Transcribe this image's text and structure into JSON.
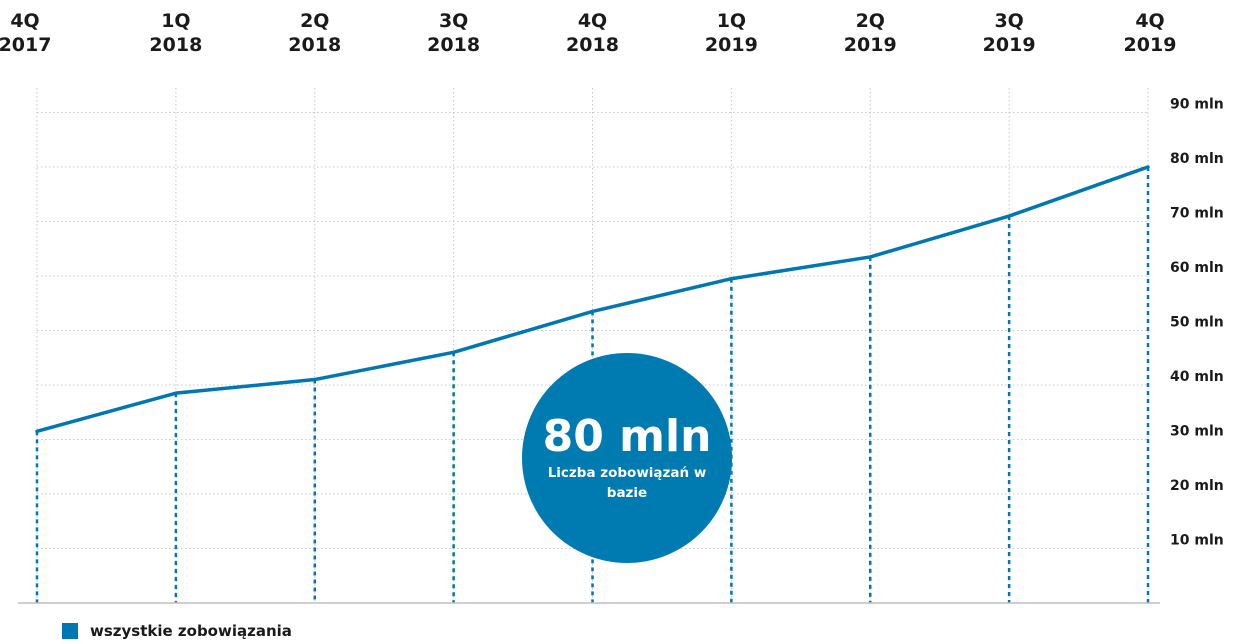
{
  "colors": {
    "line": "#0077b1",
    "badge": "#007bb2",
    "grid": "#c8c8c8",
    "axis": "#bfbfbf",
    "text": "#1a1a1a"
  },
  "badge": {
    "value": "80 mln",
    "caption": "Liczba zobowiązań w bazie"
  },
  "chart_data": {
    "type": "line",
    "x_top_labels": [
      [
        "4Q",
        "2017"
      ],
      [
        "1Q",
        "2018"
      ],
      [
        "2Q",
        "2018"
      ],
      [
        "3Q",
        "2018"
      ],
      [
        "4Q",
        "2018"
      ],
      [
        "1Q",
        "2019"
      ],
      [
        "2Q",
        "2019"
      ],
      [
        "3Q",
        "2019"
      ],
      [
        "4Q",
        "2019"
      ]
    ],
    "categories": [
      "4Q 2017",
      "1Q 2018",
      "2Q 2018",
      "3Q 2018",
      "4Q 2018",
      "1Q 2019",
      "2Q 2019",
      "3Q 2019",
      "4Q 2019"
    ],
    "series": [
      {
        "name": "wszystkie zobowiązania",
        "values": [
          31.5,
          38.5,
          41,
          46,
          53.5,
          59.5,
          63.5,
          71,
          80
        ]
      }
    ],
    "y_tick_labels": [
      "10 mln",
      "20 mln",
      "30 mln",
      "40 mln",
      "50 mln",
      "60 mln",
      "70 mln",
      "80 mln",
      "90 mln"
    ],
    "y_tick_values": [
      10,
      20,
      30,
      40,
      50,
      60,
      70,
      80,
      90
    ],
    "ylim": [
      0,
      90
    ],
    "y_axis_side": "right",
    "x_labels_position": "top",
    "grid": true,
    "legend_position": "bottom-left"
  }
}
